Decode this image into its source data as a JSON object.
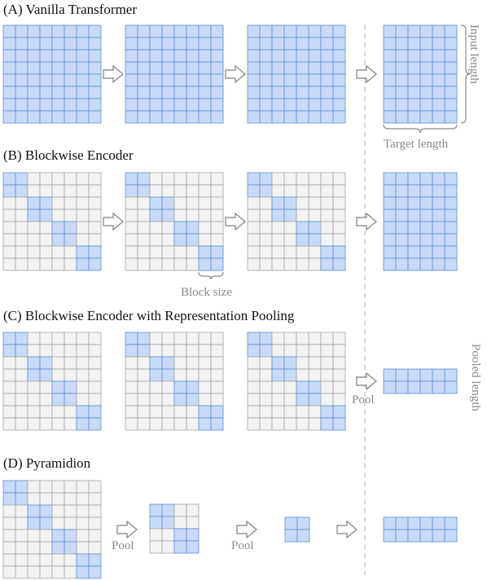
{
  "colors": {
    "cell_blue": "#c9daf8",
    "cell_blue_stroke": "#5b8fd6",
    "cell_gray": "#f3f3f3",
    "cell_gray_stroke": "#a6a6a6",
    "arrow_stroke": "#7f7f7f",
    "annotation_gray": "#8a8a8a",
    "divider": "#bdbdbd"
  },
  "icons": {
    "arrow": "hollow-right-arrow-icon",
    "bracket": "curly-brace-icon"
  },
  "sections": {
    "a": {
      "title": "(A) Vanilla Transformer"
    },
    "b": {
      "title": "(B) Blockwise Encoder"
    },
    "c": {
      "title": "(C) Blockwise Encoder with Representation Pooling"
    },
    "d": {
      "title": "(D) Pyramidion"
    }
  },
  "annotations": {
    "input_length": "Input length",
    "target_length": "Target length",
    "block_size": "Block size",
    "pooled_length": "Pooled length",
    "pool": "Pool"
  }
}
